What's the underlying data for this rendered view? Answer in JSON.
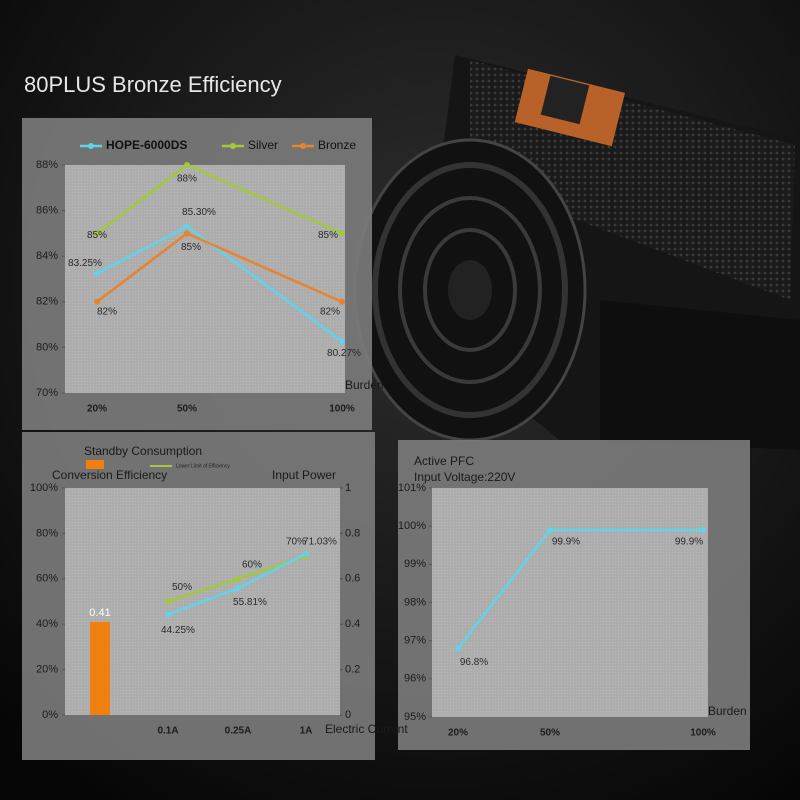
{
  "title": "80PLUS Bronze Efficiency",
  "chart_data": [
    {
      "type": "line",
      "xlabel": "Burden",
      "categories": [
        "20%",
        "50%",
        "100%"
      ],
      "series": [
        {
          "name": "HOPE-6000DS",
          "color": "#5fd3ea",
          "values": [
            83.25,
            85.3,
            80.27
          ],
          "value_labels": [
            "83.25%",
            "85.30%",
            "80.27%"
          ]
        },
        {
          "name": "Silver",
          "color": "#a3c83a",
          "values": [
            85,
            88,
            85
          ],
          "value_labels": [
            "85%",
            "88%",
            "85%"
          ]
        },
        {
          "name": "Bronze",
          "color": "#e8832e",
          "values": [
            82,
            85,
            82
          ],
          "value_labels": [
            "82%",
            "85%",
            "82%"
          ]
        }
      ],
      "ylim": [
        70,
        88
      ],
      "yticks": [
        {
          "value": 70,
          "label": "70%"
        },
        {
          "value": 80,
          "label": "80%"
        },
        {
          "value": 82,
          "label": "82%"
        },
        {
          "value": 84,
          "label": "84%"
        },
        {
          "value": 86,
          "label": "86%"
        },
        {
          "value": 88,
          "label": "88%"
        }
      ],
      "grid": false
    },
    {
      "type": "combo",
      "ylabel": "Conversion Efficiency",
      "y2label": "Input Power",
      "xlabel": "Electric Current",
      "categories": [
        null,
        "0.1A",
        "0.25A",
        "1A"
      ],
      "series": [
        {
          "name": "Standby Consumption",
          "type": "bar",
          "axis": "y2",
          "color": "#f07f12",
          "values": [
            0.41,
            null,
            null,
            null
          ]
        },
        {
          "name": "Lower Limit of Efficiency",
          "type": "line",
          "color": "#a3c83a",
          "values": [
            null,
            50,
            60,
            70
          ],
          "value_labels": [
            null,
            "50%",
            "60%",
            "70%"
          ]
        },
        {
          "type": "line",
          "color": "#5fd3ea",
          "values": [
            null,
            44.25,
            55.81,
            71.03
          ],
          "value_labels": [
            null,
            "44.25%",
            "55.81%",
            "71.03%"
          ]
        }
      ],
      "ylim": [
        0,
        100
      ],
      "yticks": [
        {
          "value": 0,
          "label": "0%"
        },
        {
          "value": 20,
          "label": "20%"
        },
        {
          "value": 40,
          "label": "40%"
        },
        {
          "value": 60,
          "label": "60%"
        },
        {
          "value": 80,
          "label": "80%"
        },
        {
          "value": 100,
          "label": "100%"
        }
      ],
      "y2lim": [
        0,
        1
      ],
      "y2ticks": [
        0,
        0.2,
        0.4,
        0.6,
        0.8,
        1
      ]
    },
    {
      "type": "line",
      "title": "Active PFC",
      "subtitle": "Input Voltage:220V",
      "xlabel": "Burden",
      "categories": [
        "20%",
        "50%",
        "100%"
      ],
      "series": [
        {
          "color": "#5fd3ea",
          "values": [
            96.8,
            99.9,
            99.9
          ],
          "value_labels": [
            "96.8%",
            "99.9%",
            "99.9%"
          ]
        }
      ],
      "ylim": [
        95,
        101
      ],
      "yticks": [
        {
          "value": 95,
          "label": "95%"
        },
        {
          "value": 96,
          "label": "96%"
        },
        {
          "value": 97,
          "label": "97%"
        },
        {
          "value": 98,
          "label": "98%"
        },
        {
          "value": 99,
          "label": "99%"
        },
        {
          "value": 100,
          "label": "100%"
        },
        {
          "value": 101,
          "label": "101%"
        }
      ]
    }
  ]
}
